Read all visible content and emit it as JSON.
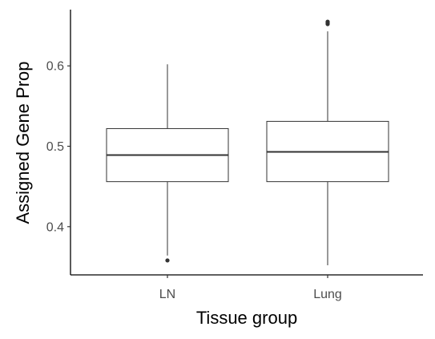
{
  "chart_data": {
    "type": "box",
    "xlabel": "Tissue group",
    "ylabel": "Assigned Gene Prop",
    "ylim": [
      0.34,
      0.67
    ],
    "yticks": [
      0.4,
      0.5,
      0.6
    ],
    "ytick_labels": [
      "0.4",
      "0.5",
      "0.6"
    ],
    "grid": false,
    "categories": [
      "LN",
      "Lung"
    ],
    "boxes": [
      {
        "name": "LN",
        "whisker_low": 0.364,
        "q1": 0.456,
        "median": 0.489,
        "q3": 0.522,
        "whisker_high": 0.602,
        "outliers": [
          0.358
        ]
      },
      {
        "name": "Lung",
        "whisker_low": 0.352,
        "q1": 0.456,
        "median": 0.493,
        "q3": 0.531,
        "whisker_high": 0.643,
        "outliers": [
          0.652,
          0.653,
          0.654,
          0.655
        ]
      }
    ]
  }
}
